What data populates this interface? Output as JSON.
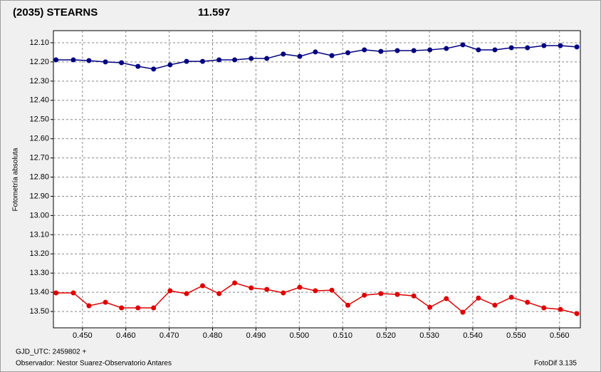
{
  "chart_data": {
    "type": "line",
    "title": "(2035) STEARNS",
    "title_color": "#e00000",
    "subtitle": "11.597",
    "subtitle_color": "#000080",
    "ylabel": "Fotometría absoluta",
    "footer_left": [
      "GJD_UTC: 2459802 +",
      "Observador: Nestor Suarez-Observatorio Antares"
    ],
    "footer_right": "FotoDif 3.135",
    "grid": true,
    "xlim": [
      0.4433,
      0.5648
    ],
    "ylim": [
      13.585,
      12.037
    ],
    "xticks": [
      {
        "value": 0.45,
        "label": "0.450"
      },
      {
        "value": 0.46,
        "label": "0.460"
      },
      {
        "value": 0.47,
        "label": "0.470"
      },
      {
        "value": 0.48,
        "label": "0.480"
      },
      {
        "value": 0.49,
        "label": "0.490"
      },
      {
        "value": 0.5,
        "label": "0.500"
      },
      {
        "value": 0.51,
        "label": "0.510"
      },
      {
        "value": 0.52,
        "label": "0.520"
      },
      {
        "value": 0.53,
        "label": "0.530"
      },
      {
        "value": 0.54,
        "label": "0.540"
      },
      {
        "value": 0.55,
        "label": "0.550"
      },
      {
        "value": 0.56,
        "label": "0.560"
      }
    ],
    "yticks": [
      {
        "value": 12.1,
        "label": "12.10"
      },
      {
        "value": 12.2,
        "label": "12.20"
      },
      {
        "value": 12.3,
        "label": "12.30"
      },
      {
        "value": 12.4,
        "label": "12.40"
      },
      {
        "value": 12.5,
        "label": "12.50"
      },
      {
        "value": 12.6,
        "label": "12.60"
      },
      {
        "value": 12.7,
        "label": "12.70"
      },
      {
        "value": 12.8,
        "label": "12.80"
      },
      {
        "value": 12.9,
        "label": "12.90"
      },
      {
        "value": 13.0,
        "label": "13.00"
      },
      {
        "value": 13.1,
        "label": "13.10"
      },
      {
        "value": 13.2,
        "label": "13.20"
      },
      {
        "value": 13.3,
        "label": "13.30"
      },
      {
        "value": 13.4,
        "label": "13.40"
      },
      {
        "value": 13.5,
        "label": "13.50"
      }
    ],
    "x": [
      0.4439,
      0.4479,
      0.4515,
      0.4553,
      0.459,
      0.4628,
      0.4664,
      0.4702,
      0.474,
      0.4777,
      0.4815,
      0.4851,
      0.4889,
      0.4925,
      0.4963,
      0.5001,
      0.5037,
      0.5075,
      0.5112,
      0.515,
      0.5188,
      0.5226,
      0.5264,
      0.5301,
      0.5339,
      0.5377,
      0.5413,
      0.5451,
      0.5489,
      0.5526,
      0.5564,
      0.5602,
      0.564
    ],
    "series": [
      {
        "color": "#000080",
        "values": [
          12.189,
          12.189,
          12.193,
          12.2,
          12.204,
          12.223,
          12.237,
          12.215,
          12.197,
          12.197,
          12.189,
          12.189,
          12.182,
          12.182,
          12.159,
          12.171,
          12.148,
          12.167,
          12.152,
          12.137,
          12.145,
          12.141,
          12.141,
          12.137,
          12.13,
          12.111,
          12.137,
          12.137,
          12.126,
          12.126,
          12.115,
          12.115,
          12.122
        ]
      },
      {
        "color": "#e00000",
        "values": [
          13.403,
          13.403,
          13.47,
          13.452,
          13.481,
          13.481,
          13.481,
          13.392,
          13.407,
          13.366,
          13.407,
          13.351,
          13.377,
          13.385,
          13.403,
          13.374,
          13.392,
          13.389,
          13.467,
          13.415,
          13.407,
          13.411,
          13.419,
          13.478,
          13.433,
          13.504,
          13.43,
          13.467,
          13.426,
          13.452,
          13.481,
          13.489,
          13.511
        ]
      }
    ]
  }
}
